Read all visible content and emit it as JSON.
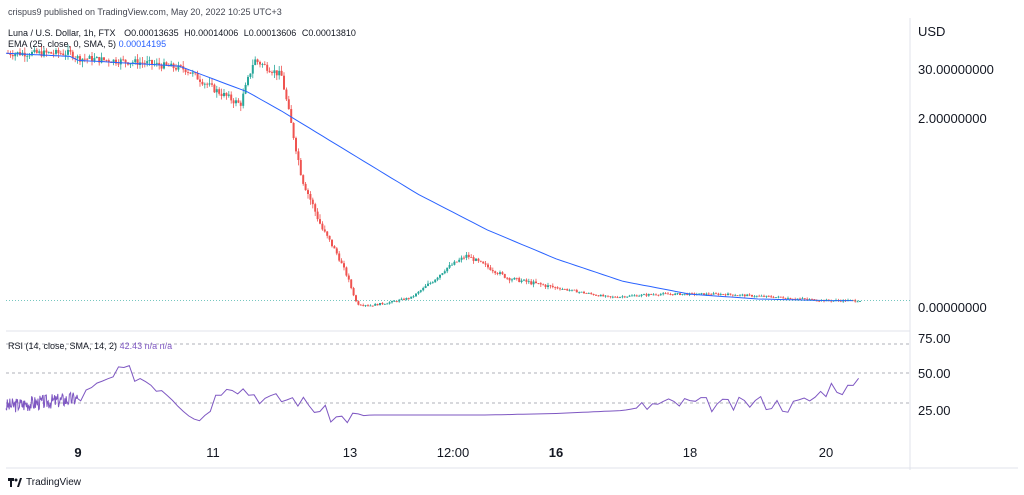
{
  "header": {
    "published": "crispus9 published on TradingView.com, May 20, 2022 10:25 UTC+3",
    "symbol": "Luna / U.S. Dollar, 1h, FTX",
    "ohlc": {
      "o_label": "O",
      "o": "0.00013635",
      "h_label": "H",
      "h": "0.00014006",
      "l_label": "L",
      "l": "0.00013606",
      "c_label": "C",
      "c": "0.00013810"
    },
    "ema_label": "EMA (25, close, 0, SMA, 5)",
    "ema_value": "0.00014195"
  },
  "currency": "USD",
  "rsi": {
    "label": "RSI (14, close, SMA, 14, 2)",
    "value": "42.43",
    "na1": "n/a",
    "na2": "n/a"
  },
  "footer": {
    "brand": "TradingView"
  },
  "colors": {
    "up": "#26a69a",
    "down": "#ef5350",
    "ema": "#2962ff",
    "rsi": "#7e57c2",
    "grid": "#f0f3fa",
    "axis_text": "#131722"
  },
  "chart_data": [
    {
      "type": "candlestick",
      "title": "Luna / U.S. Dollar, 1h, FTX",
      "x_ticks": [
        "9",
        "11",
        "13",
        "12:00",
        "16",
        "18",
        "20"
      ],
      "y_ticks": [
        "30.00000000",
        "2.00000000",
        "0.00000000"
      ],
      "y_scale": "log",
      "price_path": [
        [
          0,
          79
        ],
        [
          8,
          79
        ],
        [
          10,
          76
        ],
        [
          10.6,
          74
        ],
        [
          11,
          68
        ],
        [
          11.4,
          63
        ],
        [
          11.6,
          77
        ],
        [
          12,
          72
        ],
        [
          12.3,
          40
        ],
        [
          12.6,
          24
        ],
        [
          12.8,
          17
        ],
        [
          12.95,
          10
        ],
        [
          13.1,
          1
        ],
        [
          13.3,
          0.5
        ],
        [
          13.6,
          1.5
        ],
        [
          13.9,
          3
        ],
        [
          14.2,
          8
        ],
        [
          14.4,
          12
        ],
        [
          14.7,
          16
        ],
        [
          15.3,
          9
        ],
        [
          16,
          6
        ],
        [
          16.8,
          3
        ],
        [
          17.5,
          4
        ],
        [
          18.5,
          4
        ],
        [
          19.3,
          3
        ],
        [
          20,
          2
        ],
        [
          20.5,
          2
        ]
      ],
      "ema_path": [
        [
          0,
          79
        ],
        [
          8,
          78
        ],
        [
          10.5,
          75
        ],
        [
          11.5,
          67
        ],
        [
          12,
          61
        ],
        [
          13,
          48
        ],
        [
          14,
          35
        ],
        [
          15,
          24
        ],
        [
          16,
          15
        ],
        [
          17,
          8
        ],
        [
          18,
          4
        ],
        [
          19,
          2.5
        ],
        [
          20,
          2
        ],
        [
          20.5,
          2
        ]
      ],
      "current_value": "0.00013810"
    },
    {
      "type": "line",
      "title": "RSI (14, close, SMA, 14, 2)",
      "y_ticks": [
        "75.00",
        "50.00",
        "25.00"
      ],
      "bands": [
        70,
        50,
        30
      ],
      "series": [
        {
          "name": "RSI",
          "x": [
            0,
            9,
            9.7,
            10.3,
            10.8,
            11.2,
            11.8,
            12.2,
            12.8,
            13.3,
            14,
            15,
            16,
            17,
            17.5,
            18,
            18.6,
            19,
            19.5,
            19.8,
            20.1,
            20.3,
            20.5
          ],
          "values": [
            28,
            33,
            52,
            39,
            19,
            44,
            32,
            33,
            20,
            22,
            22,
            22,
            23,
            25,
            29,
            30,
            28,
            31,
            28,
            33,
            42,
            39,
            42.43
          ]
        }
      ]
    }
  ]
}
